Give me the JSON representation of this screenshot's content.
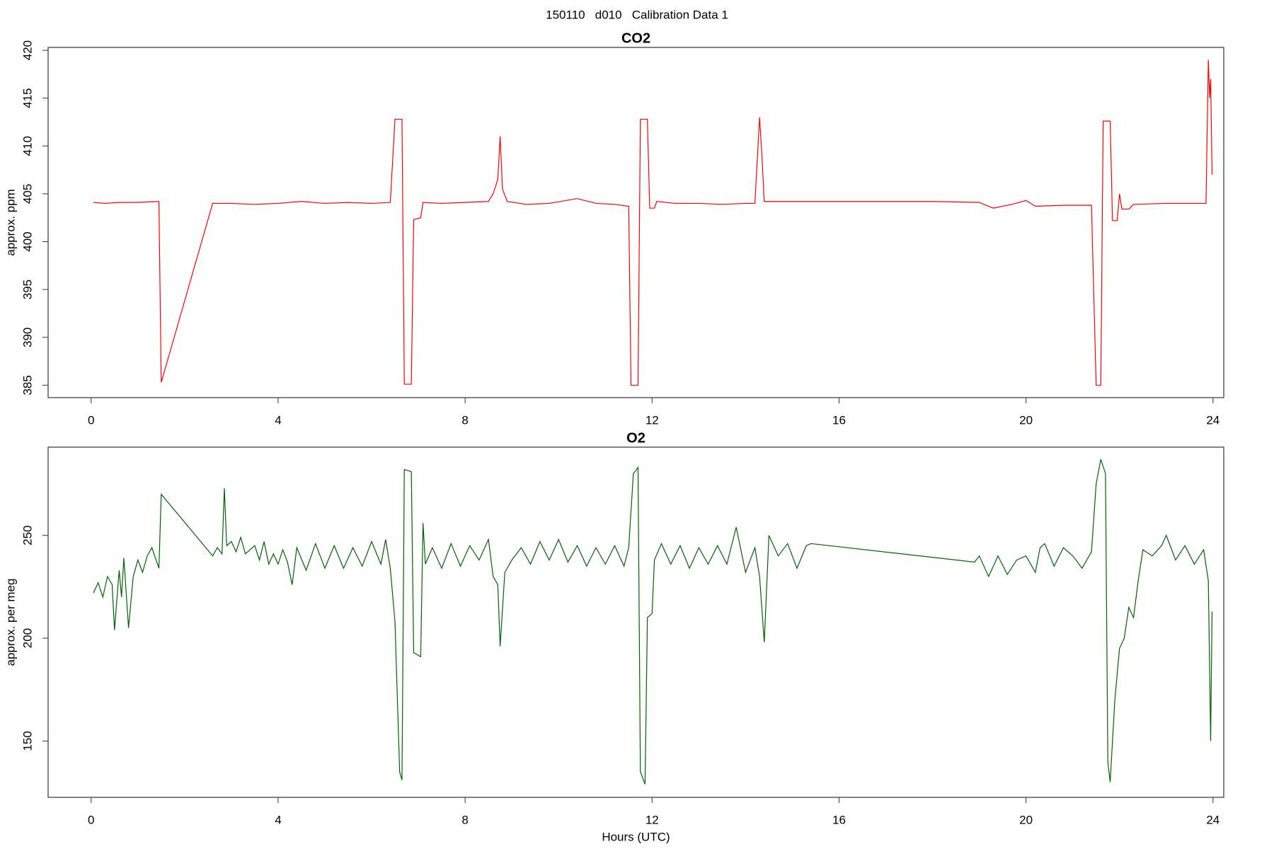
{
  "title": "150110   d010   Calibration Data 1",
  "chart_data": [
    {
      "type": "line",
      "title": "CO2",
      "y_label": "approx. ppm",
      "xlim": [
        -0.92,
        24.23
      ],
      "xticks": [
        0,
        4,
        8,
        12,
        16,
        20,
        24
      ],
      "ylim": [
        383.7,
        420.3
      ],
      "yticks": [
        385,
        390,
        395,
        400,
        405,
        410,
        415,
        420
      ],
      "x": [
        0.05,
        0.3,
        0.6,
        1.0,
        1.45,
        1.5,
        2.6,
        3.0,
        3.5,
        4.0,
        4.5,
        5.0,
        5.5,
        6.0,
        6.4,
        6.5,
        6.65,
        6.7,
        6.85,
        6.9,
        7.05,
        7.1,
        7.5,
        8.0,
        8.5,
        8.6,
        8.7,
        8.75,
        8.8,
        8.9,
        9.3,
        9.8,
        10.4,
        10.8,
        11.2,
        11.5,
        11.55,
        11.7,
        11.75,
        11.9,
        11.95,
        12.05,
        12.1,
        12.5,
        13.0,
        13.5,
        14.0,
        14.2,
        14.3,
        14.35,
        14.4,
        15.0,
        16.0,
        17.0,
        18.0,
        19.0,
        19.3,
        19.7,
        20.0,
        20.2,
        20.8,
        21.4,
        21.5,
        21.6,
        21.65,
        21.8,
        21.85,
        21.95,
        22.0,
        22.05,
        22.2,
        22.3,
        23.0,
        23.5,
        23.85,
        23.9,
        23.93,
        23.95,
        23.98
      ],
      "series": [
        {
          "name": "CO2",
          "color": "#ff0000",
          "values": [
            404.1,
            404.0,
            404.1,
            404.1,
            404.2,
            385.3,
            404.0,
            404.0,
            403.9,
            404.0,
            404.2,
            404.0,
            404.1,
            404.0,
            404.1,
            412.8,
            412.8,
            385.1,
            385.1,
            402.3,
            402.5,
            404.1,
            404.0,
            404.1,
            404.2,
            405.0,
            406.5,
            411.0,
            405.5,
            404.2,
            403.9,
            404.0,
            404.5,
            404.0,
            403.9,
            403.7,
            385.0,
            385.0,
            412.8,
            412.8,
            403.5,
            403.5,
            404.2,
            404.0,
            404.0,
            403.9,
            404.0,
            404.0,
            413.0,
            409.0,
            404.2,
            404.2,
            404.2,
            404.2,
            404.2,
            404.1,
            403.5,
            403.9,
            404.3,
            403.7,
            403.8,
            403.8,
            385.0,
            385.0,
            412.6,
            412.6,
            402.2,
            402.2,
            405.0,
            403.4,
            403.4,
            403.9,
            404.0,
            404.0,
            404.0,
            419.0,
            415.0,
            417.0,
            407.0
          ]
        }
      ]
    },
    {
      "type": "line",
      "title": "O2",
      "y_label": "approx. per meg",
      "x_label": "Hours (UTC)",
      "xlim": [
        -0.92,
        24.23
      ],
      "xticks": [
        0,
        4,
        8,
        12,
        16,
        20,
        24
      ],
      "ylim": [
        122.6,
        292.9
      ],
      "yticks": [
        150,
        200,
        250
      ],
      "x": [
        0.05,
        0.15,
        0.25,
        0.35,
        0.45,
        0.5,
        0.6,
        0.65,
        0.7,
        0.8,
        0.9,
        1.0,
        1.1,
        1.2,
        1.3,
        1.45,
        1.5,
        2.6,
        2.7,
        2.8,
        2.85,
        2.9,
        3.0,
        3.1,
        3.2,
        3.3,
        3.5,
        3.6,
        3.7,
        3.8,
        3.9,
        4.0,
        4.1,
        4.2,
        4.3,
        4.4,
        4.6,
        4.8,
        5.0,
        5.2,
        5.4,
        5.6,
        5.8,
        6.0,
        6.2,
        6.3,
        6.4,
        6.5,
        6.6,
        6.65,
        6.7,
        6.85,
        6.9,
        7.05,
        7.1,
        7.15,
        7.3,
        7.5,
        7.7,
        7.9,
        8.1,
        8.3,
        8.5,
        8.6,
        8.7,
        8.75,
        8.85,
        9.0,
        9.2,
        9.4,
        9.6,
        9.8,
        10.0,
        10.2,
        10.4,
        10.6,
        10.8,
        11.0,
        11.2,
        11.4,
        11.5,
        11.6,
        11.7,
        11.75,
        11.85,
        11.9,
        12.0,
        12.05,
        12.2,
        12.4,
        12.6,
        12.8,
        13.0,
        13.2,
        13.4,
        13.6,
        13.8,
        14.0,
        14.2,
        14.3,
        14.4,
        14.5,
        14.7,
        14.9,
        15.1,
        15.3,
        15.4,
        18.9,
        19.0,
        19.2,
        19.4,
        19.6,
        19.8,
        20.0,
        20.2,
        20.3,
        20.4,
        20.6,
        20.8,
        21.0,
        21.2,
        21.4,
        21.5,
        21.6,
        21.7,
        21.75,
        21.8,
        21.9,
        22.0,
        22.1,
        22.2,
        22.3,
        22.4,
        22.5,
        22.7,
        22.9,
        23.0,
        23.2,
        23.4,
        23.6,
        23.8,
        23.9,
        23.95,
        23.98
      ],
      "series": [
        {
          "name": "O2",
          "color": "#006400",
          "values": [
            222,
            227,
            220,
            230,
            226,
            204,
            233,
            220,
            239,
            205,
            230,
            238,
            232,
            240,
            244,
            234,
            270,
            240,
            244,
            241,
            273,
            245,
            247,
            242,
            249,
            241,
            245,
            238,
            247,
            236,
            241,
            236,
            243,
            237,
            226,
            244,
            233,
            246,
            234,
            245,
            234,
            244,
            235,
            247,
            236,
            248,
            234,
            208,
            135,
            131,
            282,
            281,
            193,
            191,
            256,
            236,
            244,
            234,
            246,
            235,
            245,
            238,
            248,
            230,
            226,
            196,
            232,
            238,
            244,
            236,
            247,
            238,
            248,
            237,
            245,
            235,
            244,
            236,
            245,
            235,
            244,
            280,
            283,
            135,
            129,
            210,
            212,
            238,
            246,
            236,
            245,
            234,
            244,
            236,
            245,
            236,
            254,
            232,
            244,
            230,
            198,
            250,
            240,
            246,
            234,
            245,
            246,
            237,
            240,
            230,
            240,
            231,
            238,
            240,
            232,
            244,
            246,
            235,
            244,
            240,
            234,
            242,
            275,
            287,
            280,
            140,
            130,
            170,
            195,
            200,
            215,
            210,
            228,
            243,
            240,
            245,
            250,
            238,
            245,
            236,
            243,
            228,
            150,
            213
          ]
        }
      ]
    }
  ]
}
